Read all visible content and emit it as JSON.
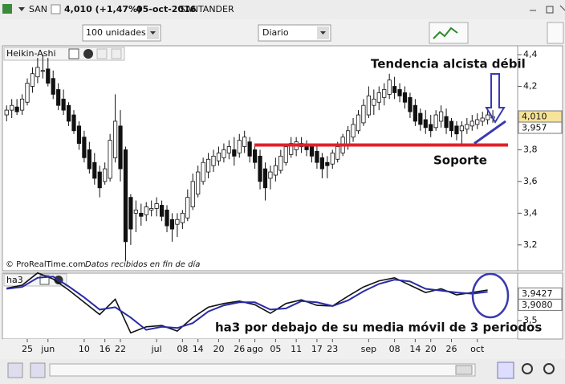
{
  "ui": {
    "symbol": "SAN",
    "quote": "4,010 (+1,47%)",
    "date": "05-oct-2016",
    "name": "SANTANDER",
    "quantity": "100 unidades",
    "period": "Diario",
    "copyright": "© ProRealTime.com",
    "data_note": "Datos recibidos en fin de día"
  },
  "chart_data": [
    {
      "type": "candlestick",
      "title": "Heikin-Ashi",
      "xlim": [
        -0.5,
        98.8
      ],
      "xticks": [
        {
          "value": 4,
          "label": "25"
        },
        {
          "value": 8,
          "label": "jun"
        },
        {
          "value": 15,
          "label": "10"
        },
        {
          "value": 19,
          "label": "16"
        },
        {
          "value": 22,
          "label": "22"
        },
        {
          "value": 29,
          "label": "jul"
        },
        {
          "value": 34,
          "label": "08"
        },
        {
          "value": 37,
          "label": "14"
        },
        {
          "value": 41,
          "label": "20"
        },
        {
          "value": 45,
          "label": "26"
        },
        {
          "value": 48,
          "label": "ago"
        },
        {
          "value": 52,
          "label": "05"
        },
        {
          "value": 56,
          "label": "11"
        },
        {
          "value": 60,
          "label": "17"
        },
        {
          "value": 63,
          "label": "23"
        },
        {
          "value": 70,
          "label": "sep"
        },
        {
          "value": 75,
          "label": "08"
        },
        {
          "value": 79,
          "label": "14"
        },
        {
          "value": 82,
          "label": "20"
        },
        {
          "value": 86,
          "label": "26"
        },
        {
          "value": 91,
          "label": "oct"
        }
      ],
      "ylim": [
        3.042,
        4.451
      ],
      "yticks": [
        {
          "value": 3.2,
          "label": "3,2"
        },
        {
          "value": 3.4,
          "label": "3,4"
        },
        {
          "value": 3.6,
          "label": "3,6"
        },
        {
          "value": 3.8,
          "label": "3,8"
        },
        {
          "value": 4.0,
          "label": "4,0"
        },
        {
          "value": 4.2,
          "label": "4,2"
        },
        {
          "value": 4.4,
          "label": "4,4"
        }
      ],
      "last_labels": [
        {
          "value": 4.01,
          "label": "4,010"
        },
        {
          "value": 3.957,
          "label": "3,957"
        }
      ],
      "support": {
        "value": 3.83,
        "label": "Soporte",
        "color": "#e0202a"
      },
      "trend": {
        "values": [
          3.84,
          3.98
        ],
        "label": "Tendencia alcista débil",
        "color": "#3a3ab0"
      },
      "ohlc": [
        [
          4.02,
          4.08,
          3.98,
          4.05
        ],
        [
          4.05,
          4.12,
          4.0,
          4.08
        ],
        [
          4.07,
          4.12,
          4.02,
          4.04
        ],
        [
          4.05,
          4.15,
          4.02,
          4.12
        ],
        [
          4.1,
          4.25,
          4.08,
          4.22
        ],
        [
          4.2,
          4.32,
          4.16,
          4.28
        ],
        [
          4.26,
          4.38,
          4.22,
          4.32
        ],
        [
          4.3,
          4.4,
          4.25,
          4.3
        ],
        [
          4.31,
          4.38,
          4.2,
          4.22
        ],
        [
          4.25,
          4.3,
          4.12,
          4.15
        ],
        [
          4.18,
          4.22,
          4.05,
          4.08
        ],
        [
          4.12,
          4.18,
          4.02,
          4.05
        ],
        [
          4.08,
          4.1,
          3.95,
          3.98
        ],
        [
          4.02,
          4.05,
          3.9,
          3.92
        ],
        [
          3.95,
          3.98,
          3.8,
          3.84
        ],
        [
          3.88,
          3.92,
          3.72,
          3.75
        ],
        [
          3.8,
          3.85,
          3.65,
          3.68
        ],
        [
          3.72,
          3.78,
          3.58,
          3.62
        ],
        [
          3.66,
          3.7,
          3.5,
          3.56
        ],
        [
          3.6,
          3.72,
          3.58,
          3.68
        ],
        [
          3.62,
          3.9,
          3.6,
          3.86
        ],
        [
          3.75,
          4.15,
          3.72,
          3.98
        ],
        [
          3.95,
          4.05,
          3.6,
          3.68
        ],
        [
          3.8,
          3.82,
          3.1,
          3.22
        ],
        [
          3.5,
          3.52,
          3.2,
          3.3
        ],
        [
          3.4,
          3.48,
          3.28,
          3.42
        ],
        [
          3.4,
          3.46,
          3.32,
          3.38
        ],
        [
          3.39,
          3.47,
          3.35,
          3.44
        ],
        [
          3.42,
          3.48,
          3.38,
          3.43
        ],
        [
          3.43,
          3.5,
          3.38,
          3.46
        ],
        [
          3.45,
          3.48,
          3.35,
          3.38
        ],
        [
          3.42,
          3.45,
          3.28,
          3.32
        ],
        [
          3.36,
          3.4,
          3.22,
          3.3
        ],
        [
          3.33,
          3.4,
          3.25,
          3.36
        ],
        [
          3.34,
          3.42,
          3.3,
          3.4
        ],
        [
          3.37,
          3.55,
          3.35,
          3.5
        ],
        [
          3.44,
          3.65,
          3.42,
          3.6
        ],
        [
          3.52,
          3.7,
          3.5,
          3.66
        ],
        [
          3.6,
          3.75,
          3.58,
          3.72
        ],
        [
          3.66,
          3.78,
          3.62,
          3.74
        ],
        [
          3.7,
          3.8,
          3.66,
          3.76
        ],
        [
          3.73,
          3.82,
          3.7,
          3.78
        ],
        [
          3.75,
          3.84,
          3.72,
          3.8
        ],
        [
          3.78,
          3.86,
          3.74,
          3.82
        ],
        [
          3.8,
          3.88,
          3.7,
          3.76
        ],
        [
          3.78,
          3.9,
          3.75,
          3.86
        ],
        [
          3.82,
          3.92,
          3.78,
          3.88
        ],
        [
          3.85,
          3.88,
          3.72,
          3.76
        ],
        [
          3.8,
          3.84,
          3.68,
          3.72
        ],
        [
          3.76,
          3.8,
          3.55,
          3.6
        ],
        [
          3.68,
          3.72,
          3.48,
          3.56
        ],
        [
          3.62,
          3.7,
          3.55,
          3.66
        ],
        [
          3.64,
          3.75,
          3.6,
          3.7
        ],
        [
          3.67,
          3.8,
          3.65,
          3.76
        ],
        [
          3.72,
          3.84,
          3.7,
          3.82
        ],
        [
          3.77,
          3.88,
          3.75,
          3.84
        ],
        [
          3.8,
          3.88,
          3.76,
          3.85
        ],
        [
          3.82,
          3.88,
          3.78,
          3.84
        ],
        [
          3.83,
          3.86,
          3.76,
          3.8
        ],
        [
          3.82,
          3.84,
          3.72,
          3.76
        ],
        [
          3.79,
          3.82,
          3.68,
          3.72
        ],
        [
          3.75,
          3.78,
          3.62,
          3.68
        ],
        [
          3.72,
          3.76,
          3.62,
          3.7
        ],
        [
          3.71,
          3.8,
          3.68,
          3.78
        ],
        [
          3.74,
          3.85,
          3.72,
          3.82
        ],
        [
          3.78,
          3.9,
          3.76,
          3.88
        ],
        [
          3.83,
          3.95,
          3.8,
          3.92
        ],
        [
          3.88,
          4.0,
          3.85,
          3.96
        ],
        [
          3.92,
          4.05,
          3.9,
          4.02
        ],
        [
          3.97,
          4.12,
          3.95,
          4.08
        ],
        [
          4.02,
          4.2,
          4.0,
          4.14
        ],
        [
          4.08,
          4.18,
          4.02,
          4.12
        ],
        [
          4.1,
          4.2,
          4.05,
          4.16
        ],
        [
          4.13,
          4.22,
          4.08,
          4.18
        ],
        [
          4.15,
          4.28,
          4.12,
          4.24
        ],
        [
          4.2,
          4.26,
          4.12,
          4.16
        ],
        [
          4.18,
          4.22,
          4.1,
          4.14
        ],
        [
          4.16,
          4.2,
          4.06,
          4.1
        ],
        [
          4.13,
          4.16,
          4.0,
          4.04
        ],
        [
          4.08,
          4.12,
          3.95,
          3.98
        ],
        [
          4.03,
          4.06,
          3.92,
          3.96
        ],
        [
          3.99,
          4.05,
          3.9,
          3.94
        ],
        [
          3.96,
          4.02,
          3.88,
          3.92
        ],
        [
          3.94,
          4.05,
          3.92,
          4.02
        ],
        [
          3.98,
          4.08,
          3.94,
          4.04
        ],
        [
          4.01,
          4.06,
          3.9,
          3.94
        ],
        [
          3.98,
          4.0,
          3.88,
          3.92
        ],
        [
          3.95,
          3.98,
          3.86,
          3.9
        ],
        [
          3.92,
          3.98,
          3.84,
          3.95
        ],
        [
          3.93,
          4.0,
          3.9,
          3.96
        ],
        [
          3.95,
          4.02,
          3.92,
          3.98
        ],
        [
          3.96,
          4.03,
          3.93,
          3.99
        ],
        [
          3.98,
          4.04,
          3.95,
          4.0
        ],
        [
          3.99,
          4.06,
          3.96,
          4.02
        ],
        [
          4.0,
          4.05,
          3.97,
          4.01
        ]
      ]
    },
    {
      "type": "line",
      "title": "ha3",
      "note": "ha3 por debajo de su media móvil de 3 periodos",
      "xlim": [
        -0.5,
        98.8
      ],
      "ylim": [
        3.2,
        4.25
      ],
      "yticks": [
        {
          "value": 3.5,
          "label": "3,5"
        }
      ],
      "last_labels": [
        {
          "value": 3.9427,
          "label": "3,9427"
        },
        {
          "value": 3.908,
          "label": "3,9080"
        }
      ],
      "series": [
        {
          "color": "#111111",
          "x": [
            0,
            3,
            6,
            9,
            12,
            15,
            18,
            21,
            24,
            27,
            30,
            33,
            36,
            39,
            42,
            45,
            48,
            51,
            54,
            57,
            60,
            63,
            66,
            69,
            72,
            75,
            78,
            81,
            84,
            87,
            90,
            93
          ],
          "values": [
            4.03,
            4.08,
            4.28,
            4.18,
            4.0,
            3.8,
            3.6,
            3.85,
            3.3,
            3.4,
            3.42,
            3.33,
            3.55,
            3.72,
            3.78,
            3.82,
            3.76,
            3.62,
            3.78,
            3.84,
            3.75,
            3.74,
            3.9,
            4.05,
            4.15,
            4.2,
            4.08,
            3.96,
            4.02,
            3.92,
            3.96,
            4.0
          ]
        },
        {
          "color": "#2a2aa8",
          "x": [
            0,
            3,
            6,
            9,
            12,
            15,
            18,
            21,
            24,
            27,
            30,
            33,
            36,
            39,
            42,
            45,
            48,
            51,
            54,
            57,
            60,
            63,
            66,
            69,
            72,
            75,
            78,
            81,
            84,
            87,
            90,
            93
          ],
          "values": [
            4.02,
            4.05,
            4.2,
            4.22,
            4.06,
            3.88,
            3.68,
            3.72,
            3.55,
            3.35,
            3.4,
            3.38,
            3.46,
            3.65,
            3.75,
            3.8,
            3.8,
            3.68,
            3.7,
            3.82,
            3.8,
            3.74,
            3.83,
            3.98,
            4.1,
            4.17,
            4.14,
            4.02,
            3.99,
            3.96,
            3.94,
            3.97
          ]
        }
      ]
    }
  ]
}
